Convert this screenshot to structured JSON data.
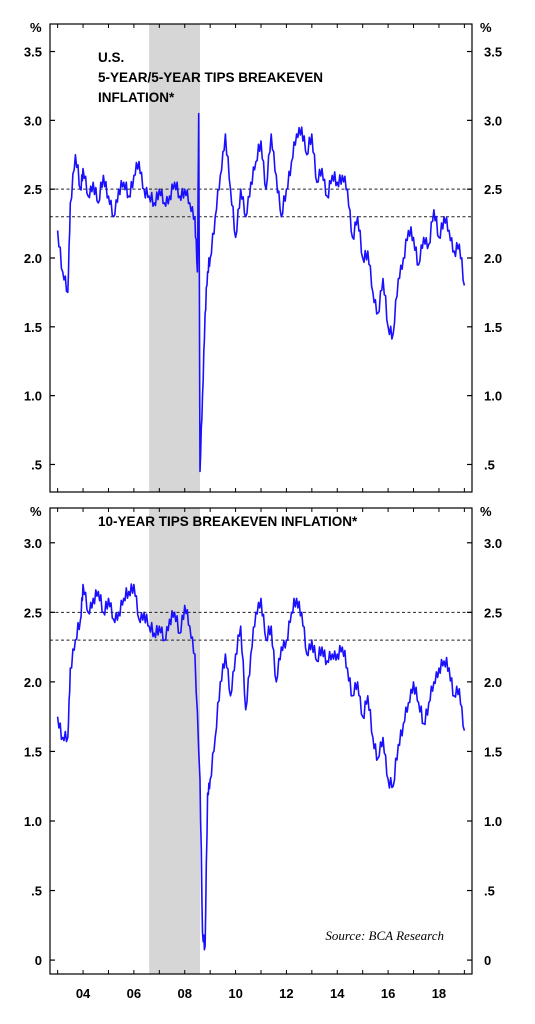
{
  "source": "Source: BCA Research",
  "x_tick_labels": [
    "04",
    "06",
    "08",
    "10",
    "12",
    "14",
    "16",
    "18"
  ],
  "chart_data": [
    {
      "type": "line",
      "title_lines": [
        "U.S.",
        "5-YEAR/5-YEAR TIPS BREAKEVEN",
        "INFLATION*"
      ],
      "unit": "%",
      "x_range": [
        2002.7,
        2019.3
      ],
      "ylim": [
        0.3,
        3.7
      ],
      "y_ticks": [
        0.5,
        1.0,
        1.5,
        2.0,
        2.5,
        3.0,
        3.5
      ],
      "y_tick_labels": [
        ".5",
        "1.0",
        "1.5",
        "2.0",
        "2.5",
        "3.0",
        "3.5"
      ],
      "reference_lines": [
        2.5,
        2.3
      ],
      "recession": [
        2006.6,
        2008.6
      ],
      "line_color": "#1a10ff",
      "series": [
        {
          "x": [
            2003.0,
            2003.2,
            2003.4,
            2003.5,
            2003.7,
            2003.9,
            2004.0,
            2004.2,
            2004.4,
            2004.6,
            2004.8,
            2005.0,
            2005.2,
            2005.4,
            2005.6,
            2005.8,
            2006.0,
            2006.2,
            2006.4,
            2006.6,
            2006.8,
            2007.0,
            2007.2,
            2007.4,
            2007.6,
            2007.8,
            2008.0,
            2008.2,
            2008.4,
            2008.5,
            2008.55,
            2008.6,
            2008.7,
            2008.8,
            2008.9,
            2009.0,
            2009.2,
            2009.4,
            2009.6,
            2009.8,
            2010.0,
            2010.2,
            2010.4,
            2010.6,
            2010.8,
            2011.0,
            2011.2,
            2011.4,
            2011.6,
            2011.8,
            2012.0,
            2012.2,
            2012.4,
            2012.6,
            2012.8,
            2013.0,
            2013.2,
            2013.4,
            2013.6,
            2013.8,
            2014.0,
            2014.2,
            2014.4,
            2014.6,
            2014.8,
            2015.0,
            2015.2,
            2015.4,
            2015.6,
            2015.8,
            2016.0,
            2016.2,
            2016.4,
            2016.6,
            2016.8,
            2017.0,
            2017.2,
            2017.4,
            2017.6,
            2017.8,
            2018.0,
            2018.2,
            2018.4,
            2018.6,
            2018.8,
            2019.0
          ],
          "y": [
            2.2,
            1.9,
            1.75,
            2.4,
            2.75,
            2.5,
            2.65,
            2.45,
            2.55,
            2.4,
            2.6,
            2.45,
            2.3,
            2.5,
            2.55,
            2.45,
            2.6,
            2.7,
            2.5,
            2.45,
            2.4,
            2.5,
            2.4,
            2.45,
            2.55,
            2.45,
            2.5,
            2.4,
            2.3,
            1.9,
            3.05,
            0.45,
            1.0,
            1.6,
            1.9,
            2.0,
            2.3,
            2.6,
            2.9,
            2.5,
            2.15,
            2.5,
            2.3,
            2.55,
            2.7,
            2.85,
            2.5,
            2.9,
            2.6,
            2.3,
            2.5,
            2.7,
            2.9,
            2.95,
            2.75,
            2.9,
            2.55,
            2.65,
            2.45,
            2.6,
            2.55,
            2.6,
            2.5,
            2.15,
            2.3,
            2.0,
            2.05,
            1.75,
            1.6,
            1.85,
            1.5,
            1.45,
            1.85,
            2.0,
            2.2,
            2.15,
            1.95,
            2.15,
            2.1,
            2.35,
            2.15,
            2.3,
            2.2,
            2.05,
            2.1,
            1.8
          ]
        }
      ]
    },
    {
      "type": "line",
      "title_lines": [
        "10-YEAR TIPS BREAKEVEN INFLATION*"
      ],
      "unit": "%",
      "x_range": [
        2002.7,
        2019.3
      ],
      "ylim": [
        -0.1,
        3.25
      ],
      "y_ticks": [
        0,
        0.5,
        1.0,
        1.5,
        2.0,
        2.5,
        3.0
      ],
      "y_tick_labels": [
        "0",
        ".5",
        "1.0",
        "1.5",
        "2.0",
        "2.5",
        "3.0"
      ],
      "reference_lines": [
        2.5,
        2.3
      ],
      "recession": [
        2006.6,
        2008.6
      ],
      "line_color": "#1a10ff",
      "series": [
        {
          "x": [
            2003.0,
            2003.2,
            2003.4,
            2003.5,
            2003.7,
            2003.9,
            2004.0,
            2004.2,
            2004.4,
            2004.6,
            2004.8,
            2005.0,
            2005.2,
            2005.4,
            2005.6,
            2005.8,
            2006.0,
            2006.2,
            2006.4,
            2006.6,
            2006.8,
            2007.0,
            2007.2,
            2007.4,
            2007.6,
            2007.8,
            2008.0,
            2008.2,
            2008.4,
            2008.6,
            2008.7,
            2008.8,
            2008.9,
            2009.0,
            2009.2,
            2009.4,
            2009.6,
            2009.8,
            2010.0,
            2010.2,
            2010.4,
            2010.6,
            2010.8,
            2011.0,
            2011.2,
            2011.4,
            2011.6,
            2011.8,
            2012.0,
            2012.2,
            2012.4,
            2012.6,
            2012.8,
            2013.0,
            2013.2,
            2013.4,
            2013.6,
            2013.8,
            2014.0,
            2014.2,
            2014.4,
            2014.6,
            2014.8,
            2015.0,
            2015.2,
            2015.4,
            2015.6,
            2015.8,
            2016.0,
            2016.2,
            2016.4,
            2016.6,
            2016.8,
            2017.0,
            2017.2,
            2017.4,
            2017.6,
            2017.8,
            2018.0,
            2018.2,
            2018.4,
            2018.6,
            2018.8,
            2019.0
          ],
          "y": [
            1.75,
            1.6,
            1.6,
            2.1,
            2.3,
            2.45,
            2.7,
            2.5,
            2.6,
            2.65,
            2.5,
            2.6,
            2.45,
            2.5,
            2.6,
            2.65,
            2.7,
            2.45,
            2.5,
            2.4,
            2.35,
            2.4,
            2.3,
            2.45,
            2.5,
            2.35,
            2.55,
            2.4,
            2.2,
            1.3,
            0.2,
            0.1,
            1.2,
            1.3,
            1.6,
            2.0,
            2.2,
            1.9,
            2.2,
            2.4,
            1.8,
            2.2,
            2.5,
            2.6,
            2.3,
            2.4,
            2.0,
            2.25,
            2.3,
            2.5,
            2.6,
            2.5,
            2.2,
            2.3,
            2.15,
            2.25,
            2.15,
            2.2,
            2.2,
            2.25,
            2.1,
            1.9,
            2.0,
            1.75,
            1.9,
            1.6,
            1.45,
            1.6,
            1.3,
            1.25,
            1.55,
            1.7,
            1.85,
            2.0,
            1.85,
            1.7,
            1.85,
            2.0,
            2.1,
            2.15,
            2.1,
            1.9,
            1.95,
            1.65
          ]
        }
      ]
    }
  ]
}
